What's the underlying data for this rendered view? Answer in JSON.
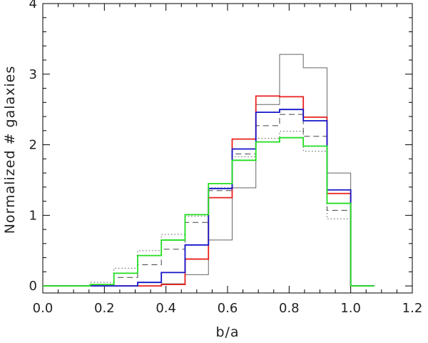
{
  "chart_data": {
    "type": "line",
    "title": "",
    "xlabel": "b/a",
    "ylabel": "Normalized # galaxies",
    "xlim": [
      0.0,
      1.2
    ],
    "ylim": [
      -0.1,
      4.0
    ],
    "xticks": [
      "0.0",
      "0.2",
      "0.4",
      "0.6",
      "0.8",
      "1.0",
      "1.2"
    ],
    "yticks": [
      "0",
      "1",
      "2",
      "3",
      "4"
    ],
    "grid": false,
    "legend": "none",
    "bin_edges": [
      0.0,
      0.077,
      0.154,
      0.231,
      0.308,
      0.385,
      0.462,
      0.538,
      0.615,
      0.692,
      0.769,
      0.846,
      0.923,
      1.0,
      1.077
    ],
    "series": [
      {
        "style": "solid",
        "color": "#666666",
        "values": [
          0.0,
          0.0,
          0.0,
          0.0,
          0.0,
          0.03,
          0.16,
          0.65,
          1.39,
          2.57,
          3.28,
          3.09,
          1.6,
          0.0
        ]
      },
      {
        "style": "dotted",
        "color": "#555555",
        "values": [
          0.0,
          0.0,
          0.05,
          0.25,
          0.5,
          0.73,
          0.99,
          1.39,
          1.83,
          2.09,
          2.19,
          1.91,
          0.95,
          0.0
        ]
      },
      {
        "style": "dashed",
        "color": "#444444",
        "values": [
          0.0,
          0.0,
          0.02,
          0.12,
          0.3,
          0.52,
          0.9,
          1.35,
          1.87,
          2.27,
          2.43,
          2.12,
          1.07,
          0.0
        ]
      },
      {
        "style": "solid",
        "color": "#e8211e",
        "values": [
          0.0,
          0.0,
          0.0,
          0.0,
          0.0,
          0.02,
          0.38,
          1.25,
          2.08,
          2.69,
          2.68,
          2.39,
          1.31,
          0.0
        ]
      },
      {
        "style": "solid",
        "color": "#1515c8",
        "values": [
          0.0,
          0.0,
          0.0,
          0.0,
          0.05,
          0.19,
          0.58,
          1.38,
          1.94,
          2.46,
          2.5,
          2.34,
          1.36,
          0.0
        ]
      },
      {
        "style": "solid",
        "color": "#22dd22",
        "values": [
          0.0,
          0.0,
          0.02,
          0.18,
          0.43,
          0.65,
          1.01,
          1.45,
          1.78,
          2.04,
          2.1,
          1.98,
          1.17,
          0.0
        ]
      }
    ]
  }
}
